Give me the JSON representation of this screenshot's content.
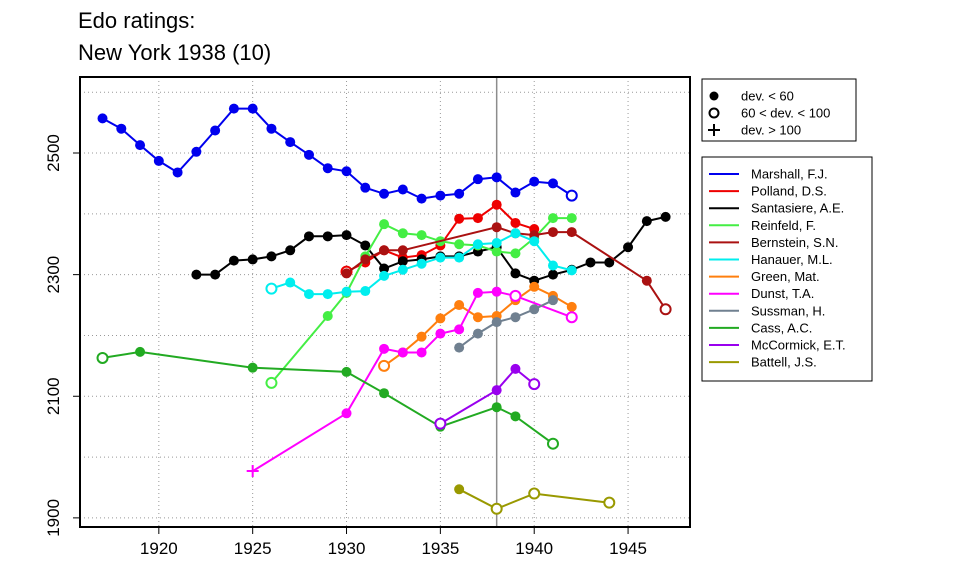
{
  "title": {
    "line1": "Edo ratings:",
    "line2": "New York 1938 (10)"
  },
  "chart_data": {
    "type": "line",
    "title": "Edo ratings: New York 1938 (10)",
    "xlim": [
      1915.8,
      1948.3
    ],
    "ylim": [
      1885,
      2625
    ],
    "x_ticks": [
      1920,
      1925,
      1930,
      1935,
      1940,
      1945
    ],
    "y_ticks": [
      1900,
      2100,
      2300,
      2500
    ],
    "grid_x": [
      1920,
      1925,
      1930,
      1935,
      1940,
      1945
    ],
    "grid_y": [
      1900,
      2000,
      2100,
      2200,
      2300,
      2400,
      2500,
      2600
    ],
    "grid": "dotted",
    "reference_line_x": 1938,
    "symbol_legend": [
      {
        "label": "dev. < 60",
        "marker": "filled"
      },
      {
        "label": "60 < dev. < 100",
        "marker": "open"
      },
      {
        "label": "dev. > 100",
        "marker": "plus"
      }
    ],
    "series": [
      {
        "name": "Marshall, F.J.",
        "color": "#0000ee",
        "points": [
          [
            1917,
            2557,
            "f"
          ],
          [
            1918,
            2540,
            "f"
          ],
          [
            1919,
            2513,
            "f"
          ],
          [
            1920,
            2487,
            "f"
          ],
          [
            1921,
            2468,
            "f"
          ],
          [
            1922,
            2502,
            "f"
          ],
          [
            1923,
            2537,
            "f"
          ],
          [
            1924,
            2573,
            "f"
          ],
          [
            1925,
            2573,
            "f"
          ],
          [
            1926,
            2540,
            "f"
          ],
          [
            1927,
            2518,
            "f"
          ],
          [
            1928,
            2497,
            "f"
          ],
          [
            1929,
            2475,
            "f"
          ],
          [
            1930,
            2470,
            "f"
          ],
          [
            1931,
            2443,
            "f"
          ],
          [
            1932,
            2433,
            "f"
          ],
          [
            1933,
            2440,
            "f"
          ],
          [
            1934,
            2425,
            "f"
          ],
          [
            1935,
            2430,
            "f"
          ],
          [
            1936,
            2433,
            "f"
          ],
          [
            1937,
            2457,
            "f"
          ],
          [
            1938,
            2460,
            "f"
          ],
          [
            1939,
            2435,
            "f"
          ],
          [
            1940,
            2453,
            "f"
          ],
          [
            1941,
            2450,
            "f"
          ],
          [
            1942,
            2430,
            "o"
          ]
        ]
      },
      {
        "name": "Polland, D.S.",
        "color": "#ee0000",
        "points": [
          [
            1930,
            2305,
            "o"
          ],
          [
            1931,
            2320,
            "f"
          ],
          [
            1932,
            2340,
            "f"
          ],
          [
            1933,
            2328,
            "f"
          ],
          [
            1934,
            2332,
            "f"
          ],
          [
            1935,
            2348,
            "f"
          ],
          [
            1936,
            2392,
            "f"
          ],
          [
            1937,
            2393,
            "f"
          ],
          [
            1938,
            2415,
            "f"
          ],
          [
            1939,
            2385,
            "f"
          ],
          [
            1940,
            2375,
            "f"
          ]
        ]
      },
      {
        "name": "Santasiere, A.E.",
        "color": "#000000",
        "points": [
          [
            1922,
            2300,
            "f"
          ],
          [
            1923,
            2300,
            "f"
          ],
          [
            1924,
            2323,
            "f"
          ],
          [
            1925,
            2325,
            "f"
          ],
          [
            1926,
            2330,
            "f"
          ],
          [
            1927,
            2340,
            "f"
          ],
          [
            1928,
            2363,
            "f"
          ],
          [
            1929,
            2363,
            "f"
          ],
          [
            1930,
            2365,
            "f"
          ],
          [
            1931,
            2348,
            "f"
          ],
          [
            1932,
            2310,
            "f"
          ],
          [
            1933,
            2322,
            "f"
          ],
          [
            1934,
            2325,
            "f"
          ],
          [
            1935,
            2330,
            "f"
          ],
          [
            1936,
            2330,
            "f"
          ],
          [
            1937,
            2338,
            "f"
          ],
          [
            1938,
            2345,
            "f"
          ],
          [
            1939,
            2302,
            "f"
          ],
          [
            1940,
            2290,
            "f"
          ],
          [
            1941,
            2300,
            "f"
          ],
          [
            1942,
            2308,
            "f"
          ],
          [
            1943,
            2320,
            "f"
          ],
          [
            1944,
            2320,
            "f"
          ],
          [
            1945,
            2345,
            "f"
          ],
          [
            1946,
            2388,
            "f"
          ],
          [
            1947,
            2395,
            "f"
          ]
        ]
      },
      {
        "name": "Reinfeld, F.",
        "color": "#44ee44",
        "points": [
          [
            1926,
            2122,
            "o"
          ],
          [
            1929,
            2232,
            "f"
          ],
          [
            1930,
            2270,
            "f"
          ],
          [
            1931,
            2330,
            "f"
          ],
          [
            1932,
            2383,
            "f"
          ],
          [
            1933,
            2368,
            "f"
          ],
          [
            1934,
            2365,
            "f"
          ],
          [
            1935,
            2355,
            "f"
          ],
          [
            1936,
            2350,
            "f"
          ],
          [
            1937,
            2348,
            "f"
          ],
          [
            1938,
            2338,
            "f"
          ],
          [
            1939,
            2335,
            "f"
          ],
          [
            1940,
            2360,
            "f"
          ],
          [
            1941,
            2393,
            "f"
          ],
          [
            1942,
            2393,
            "f"
          ]
        ]
      },
      {
        "name": "Bernstein, S.N.",
        "color": "#aa1111",
        "points": [
          [
            1930,
            2302,
            "f"
          ],
          [
            1931,
            2325,
            "f"
          ],
          [
            1932,
            2340,
            "f"
          ],
          [
            1933,
            2340,
            "f"
          ],
          [
            1938,
            2378,
            "f"
          ],
          [
            1939,
            2368,
            "f"
          ],
          [
            1940,
            2365,
            "f"
          ],
          [
            1941,
            2370,
            "f"
          ],
          [
            1942,
            2370,
            "f"
          ],
          [
            1946,
            2290,
            "f"
          ],
          [
            1947,
            2243,
            "o"
          ]
        ]
      },
      {
        "name": "Hanauer, M.L.",
        "color": "#00eeee",
        "points": [
          [
            1926,
            2277,
            "o"
          ],
          [
            1927,
            2287,
            "f"
          ],
          [
            1928,
            2268,
            "f"
          ],
          [
            1929,
            2268,
            "f"
          ],
          [
            1930,
            2272,
            "f"
          ],
          [
            1931,
            2273,
            "f"
          ],
          [
            1932,
            2298,
            "f"
          ],
          [
            1933,
            2308,
            "f"
          ],
          [
            1934,
            2318,
            "f"
          ],
          [
            1935,
            2328,
            "f"
          ],
          [
            1936,
            2328,
            "f"
          ],
          [
            1937,
            2350,
            "f"
          ],
          [
            1938,
            2352,
            "f"
          ],
          [
            1939,
            2368,
            "f"
          ],
          [
            1940,
            2355,
            "f"
          ],
          [
            1941,
            2315,
            "f"
          ],
          [
            1942,
            2307,
            "f"
          ]
        ]
      },
      {
        "name": "Green, Mat.",
        "color": "#ff7f0e",
        "points": [
          [
            1932,
            2150,
            "o"
          ],
          [
            1933,
            2172,
            "f"
          ],
          [
            1934,
            2198,
            "f"
          ],
          [
            1935,
            2228,
            "f"
          ],
          [
            1936,
            2250,
            "f"
          ],
          [
            1937,
            2230,
            "f"
          ],
          [
            1938,
            2232,
            "f"
          ],
          [
            1939,
            2258,
            "f"
          ],
          [
            1940,
            2280,
            "f"
          ],
          [
            1941,
            2265,
            "f"
          ],
          [
            1942,
            2247,
            "f"
          ]
        ]
      },
      {
        "name": "Dunst, T.A.",
        "color": "#ff00ff",
        "points": [
          [
            1925,
            1977,
            "p"
          ],
          [
            1930,
            2072,
            "f"
          ],
          [
            1932,
            2178,
            "f"
          ],
          [
            1933,
            2172,
            "f"
          ],
          [
            1934,
            2172,
            "f"
          ],
          [
            1935,
            2203,
            "f"
          ],
          [
            1936,
            2210,
            "f"
          ],
          [
            1937,
            2270,
            "f"
          ],
          [
            1938,
            2272,
            "f"
          ],
          [
            1939,
            2265,
            "o"
          ],
          [
            1942,
            2230,
            "o"
          ]
        ]
      },
      {
        "name": "Sussman, H.",
        "color": "#708090",
        "points": [
          [
            1936,
            2180,
            "f"
          ],
          [
            1937,
            2203,
            "f"
          ],
          [
            1938,
            2222,
            "f"
          ],
          [
            1939,
            2230,
            "f"
          ],
          [
            1940,
            2243,
            "f"
          ],
          [
            1941,
            2258,
            "f"
          ]
        ]
      },
      {
        "name": "Cass, A.C.",
        "color": "#22aa22",
        "points": [
          [
            1917,
            2163,
            "o"
          ],
          [
            1919,
            2173,
            "f"
          ],
          [
            1925,
            2147,
            "f"
          ],
          [
            1930,
            2140,
            "f"
          ],
          [
            1932,
            2105,
            "f"
          ],
          [
            1935,
            2050,
            "f"
          ],
          [
            1938,
            2082,
            "f"
          ],
          [
            1939,
            2067,
            "f"
          ],
          [
            1941,
            2022,
            "o"
          ]
        ]
      },
      {
        "name": "McCormick, E.T.",
        "color": "#9900ee",
        "points": [
          [
            1935,
            2055,
            "o"
          ],
          [
            1938,
            2110,
            "f"
          ],
          [
            1939,
            2145,
            "f"
          ],
          [
            1940,
            2120,
            "o"
          ]
        ]
      },
      {
        "name": "Battell, J.S.",
        "color": "#999900",
        "points": [
          [
            1936,
            1947,
            "f"
          ],
          [
            1938,
            1915,
            "o"
          ],
          [
            1940,
            1940,
            "o"
          ],
          [
            1944,
            1925,
            "o"
          ]
        ]
      }
    ]
  }
}
